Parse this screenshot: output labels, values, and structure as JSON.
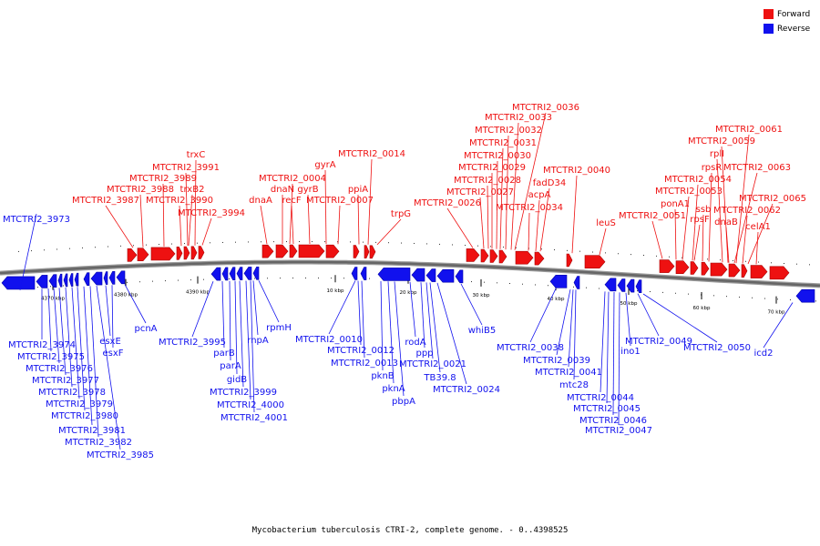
{
  "legend": [
    {
      "label": "Forward",
      "color": "#ee1111"
    },
    {
      "label": "Reverse",
      "color": "#1111ee"
    }
  ],
  "caption": "Mycobacterium tuberculosis CTRI-2, complete genome. - 0..4398525",
  "colors": {
    "forward": "#ee1111",
    "reverse": "#1111ee",
    "backbone": "#666666"
  },
  "ticks": [
    "4370 kbp",
    "4380 kbp",
    "4390 kbp",
    "10 kbp",
    "20 kbp",
    "30 kbp",
    "40 kbp",
    "50 kbp",
    "60 kbp",
    "70 kbp"
  ],
  "forward_genes": [
    "MTCTRI2_3987",
    "MTCTRI2_3988",
    "MTCTRI2_3989",
    "MTCTRI2_3991",
    "trxC",
    "trxB2",
    "MTCTRI2_3990",
    "MTCTRI2_3994",
    "dnaA",
    "dnaN",
    "MTCTRI2_0004",
    "recF",
    "gyrB",
    "gyrA",
    "MTCTRI2_0007",
    "ppiA",
    "MTCTRI2_0014",
    "trpG",
    "MTCTRI2_0026",
    "MTCTRI2_0027",
    "MTCTRI2_0028",
    "MTCTRI2_0029",
    "MTCTRI2_0030",
    "MTCTRI2_0031",
    "MTCTRI2_0032",
    "MTCTRI2_0033",
    "MTCTRI2_0036",
    "MTCTRI2_0034",
    "acpA",
    "fadD34",
    "MTCTRI2_0040",
    "leuS",
    "MTCTRI2_0051",
    "ponA1",
    "MTCTRI2_0053",
    "MTCTRI2_0054",
    "rpsF",
    "ssb",
    "rpsR",
    "rplI",
    "MTCTRI2_0059",
    "MTCTRI2_0061",
    "MTCTRI2_0063",
    "dnaB",
    "MTCTRI2_0062",
    "MTCTRI2_0065",
    "celA1"
  ],
  "reverse_genes": [
    "MTCTRI2_3973",
    "MTCTRI2_3974",
    "MTCTRI2_3975",
    "MTCTRI2_3976",
    "MTCTRI2_3977",
    "MTCTRI2_3978",
    "MTCTRI2_3979",
    "MTCTRI2_3980",
    "MTCTRI2_3981",
    "MTCTRI2_3982",
    "MTCTRI2_3985",
    "esxE",
    "esxF",
    "pcnA",
    "MTCTRI2_3995",
    "parB",
    "parA",
    "gidB",
    "MTCTRI2_3999",
    "MTCTRI2_4000",
    "MTCTRI2_4001",
    "rnpA",
    "rpmH",
    "MTCTRI2_0010",
    "MTCTRI2_0012",
    "MTCTRI2_0013",
    "pknB",
    "pknA",
    "pbpA",
    "rodA",
    "ppp",
    "MTCTRI2_0021",
    "TB39.8",
    "MTCTRI2_0024",
    "whiB5",
    "MTCTRI2_0038",
    "MTCTRI2_0039",
    "MTCTRI2_0041",
    "mtc28",
    "MTCTRI2_0044",
    "MTCTRI2_0045",
    "MTCTRI2_0046",
    "MTCTRI2_0047",
    "ino1",
    "MTCTRI2_0049",
    "MTCTRI2_0050",
    "icd2"
  ]
}
